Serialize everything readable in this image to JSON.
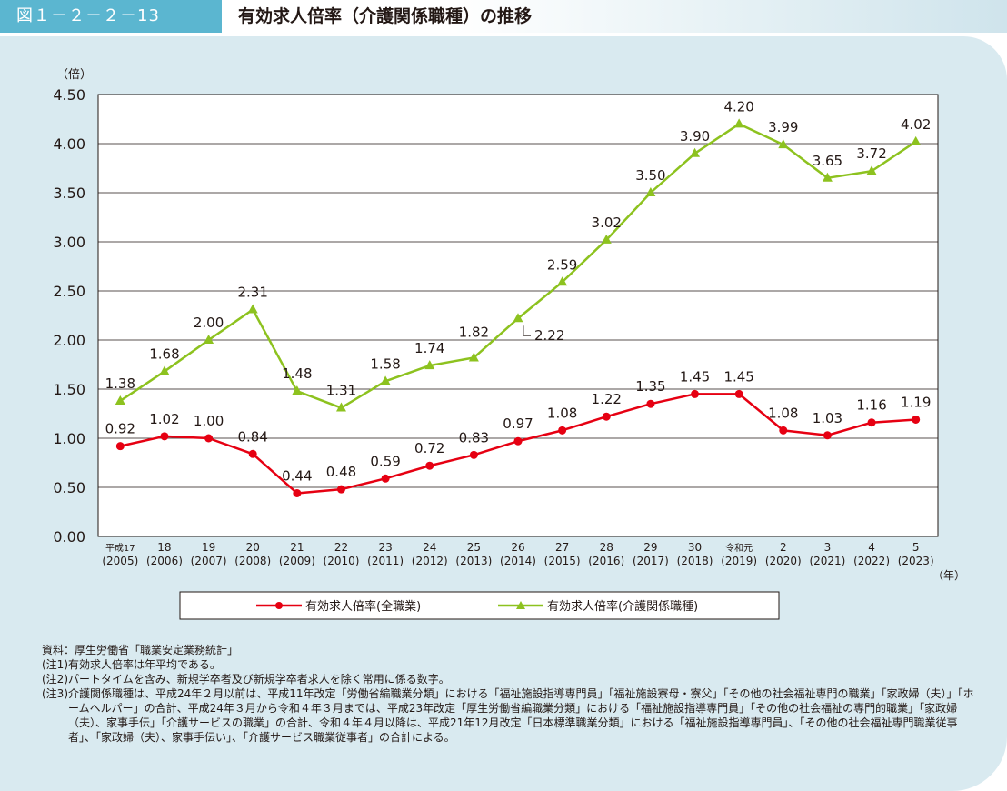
{
  "figure": {
    "number": "図１－２－２－13",
    "title": "有効求人倍率（介護関係職種）の推移"
  },
  "chart_data": {
    "type": "line",
    "y_unit": "（倍）",
    "x_unit": "（年）",
    "ylim": [
      0,
      4.5
    ],
    "yticks": [
      "0.00",
      "0.50",
      "1.00",
      "1.50",
      "2.00",
      "2.50",
      "3.00",
      "3.50",
      "4.00",
      "4.50"
    ],
    "grid": true,
    "legend_position": "bottom",
    "categories": [
      {
        "era": "平成17",
        "year": "(2005)"
      },
      {
        "era": "18",
        "year": "(2006)"
      },
      {
        "era": "19",
        "year": "(2007)"
      },
      {
        "era": "20",
        "year": "(2008)"
      },
      {
        "era": "21",
        "year": "(2009)"
      },
      {
        "era": "22",
        "year": "(2010)"
      },
      {
        "era": "23",
        "year": "(2011)"
      },
      {
        "era": "24",
        "year": "(2012)"
      },
      {
        "era": "25",
        "year": "(2013)"
      },
      {
        "era": "26",
        "year": "(2014)"
      },
      {
        "era": "27",
        "year": "(2015)"
      },
      {
        "era": "28",
        "year": "(2016)"
      },
      {
        "era": "29",
        "year": "(2017)"
      },
      {
        "era": "30",
        "year": "(2018)"
      },
      {
        "era": "令和元",
        "year": "(2019)"
      },
      {
        "era": "2",
        "year": "(2020)"
      },
      {
        "era": "3",
        "year": "(2021)"
      },
      {
        "era": "4",
        "year": "(2022)"
      },
      {
        "era": "5",
        "year": "(2023)"
      }
    ],
    "series": [
      {
        "name": "有効求人倍率(全職業)",
        "color": "#e60012",
        "marker": "circle",
        "values": [
          0.92,
          1.02,
          1.0,
          0.84,
          0.44,
          0.48,
          0.59,
          0.72,
          0.83,
          0.97,
          1.08,
          1.22,
          1.35,
          1.45,
          1.45,
          1.08,
          1.03,
          1.16,
          1.19
        ],
        "labels": [
          "0.92",
          "1.02",
          "1.00",
          "0.84",
          "0.44",
          "0.48",
          "0.59",
          "0.72",
          "0.83",
          "0.97",
          "1.08",
          "1.22",
          "1.35",
          "1.45",
          "1.45",
          "1.08",
          "1.03",
          "1.16",
          "1.19"
        ]
      },
      {
        "name": "有効求人倍率(介護関係職種)",
        "color": "#8dc21f",
        "marker": "triangle",
        "values": [
          1.38,
          1.68,
          2.0,
          2.31,
          1.48,
          1.31,
          1.58,
          1.74,
          1.82,
          2.22,
          2.59,
          3.02,
          3.5,
          3.9,
          4.2,
          3.99,
          3.65,
          3.72,
          4.02
        ],
        "labels": [
          "1.38",
          "1.68",
          "2.00",
          "2.31",
          "1.48",
          "1.31",
          "1.58",
          "1.74",
          "1.82",
          "2.22",
          "2.59",
          "3.02",
          "3.50",
          "3.90",
          "4.20",
          "3.99",
          "3.65",
          "3.72",
          "4.02"
        ]
      }
    ]
  },
  "notes": [
    {
      "label": "資料：",
      "text": "厚生労働省「職業安定業務統計」"
    },
    {
      "label": "(注1)",
      "text": "有効求人倍率は年平均である。"
    },
    {
      "label": "(注2)",
      "text": "パートタイムを含み、新規学卒者及び新規学卒者求人を除く常用に係る数字。"
    },
    {
      "label": "(注3)",
      "text": "介護関係職種は、平成24年２月以前は、平成11年改定「労働省編職業分類」における「福祉施設指導専門員」「福祉施設寮母・寮父」「その他の社会福祉専門の職業」「家政婦（夫）」「ホームヘルパー」の合計、平成24年３月から令和４年３月までは、平成23年改定「厚生労働省編職業分類」における「福祉施設指導専門員」「その他の社会福祉の専門的職業」「家政婦（夫）、家事手伝」「介護サービスの職業」の合計、令和４年４月以降は、平成21年12月改定「日本標準職業分類」における「福祉施設指導専門員」、「その他の社会福祉専門職業従事者」、「家政婦（夫）、家事手伝い」、「介護サービス職業従事者」の合計による。"
    }
  ]
}
